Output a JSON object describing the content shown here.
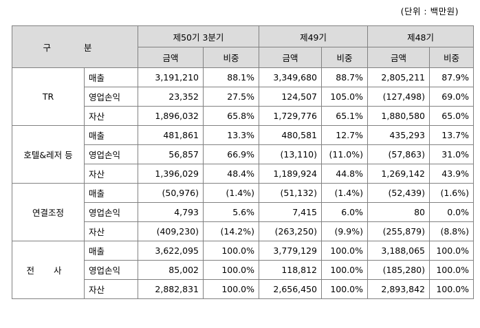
{
  "unit_note": "(단위 : 백만원)",
  "header": {
    "category": "구  분",
    "periods": [
      "제50기 3분기",
      "제49기",
      "제48기"
    ],
    "sub": [
      "금액",
      "비중",
      "금액",
      "비중",
      "금액",
      "비중"
    ]
  },
  "segments": [
    {
      "name": "TR",
      "rows": [
        {
          "metric": "매출",
          "cells": [
            "3,191,210",
            "88.1%",
            "3,349,680",
            "88.7%",
            "2,805,211",
            "87.9%"
          ]
        },
        {
          "metric": "영업손익",
          "cells": [
            "23,352",
            "27.5%",
            "124,507",
            "105.0%",
            "(127,498)",
            "69.0%"
          ]
        },
        {
          "metric": "자산",
          "cells": [
            "1,896,032",
            "65.8%",
            "1,729,776",
            "65.1%",
            "1,880,580",
            "65.0%"
          ]
        }
      ]
    },
    {
      "name": "호텔&레저 등",
      "rows": [
        {
          "metric": "매출",
          "cells": [
            "481,861",
            "13.3%",
            "480,581",
            "12.7%",
            "435,293",
            "13.7%"
          ]
        },
        {
          "metric": "영업손익",
          "cells": [
            "56,857",
            "66.9%",
            "(13,110)",
            "(11.0%)",
            "(57,863)",
            "31.0%"
          ]
        },
        {
          "metric": "자산",
          "cells": [
            "1,396,029",
            "48.4%",
            "1,189,924",
            "44.8%",
            "1,269,142",
            "43.9%"
          ]
        }
      ]
    },
    {
      "name": "연결조정",
      "rows": [
        {
          "metric": "매출",
          "cells": [
            "(50,976)",
            "(1.4%)",
            "(51,132)",
            "(1.4%)",
            "(52,439)",
            "(1.6%)"
          ]
        },
        {
          "metric": "영업손익",
          "cells": [
            "4,793",
            "5.6%",
            "7,415",
            "6.0%",
            "80",
            "0.0%"
          ]
        },
        {
          "metric": "자산",
          "cells": [
            "(409,230)",
            "(14.2%)",
            "(263,250)",
            "(9.9%)",
            "(255,879)",
            "(8.8%)"
          ]
        }
      ]
    },
    {
      "name": "전 사",
      "rows": [
        {
          "metric": "매출",
          "cells": [
            "3,622,095",
            "100.0%",
            "3,779,129",
            "100.0%",
            "3,188,065",
            "100.0%"
          ]
        },
        {
          "metric": "영업손익",
          "cells": [
            "85,002",
            "100.0%",
            "118,812",
            "100.0%",
            "(185,280)",
            "100.0%"
          ]
        },
        {
          "metric": "자산",
          "cells": [
            "2,882,831",
            "100.0%",
            "2,656,450",
            "100.0%",
            "2,893,842",
            "100.0%"
          ]
        }
      ]
    }
  ]
}
